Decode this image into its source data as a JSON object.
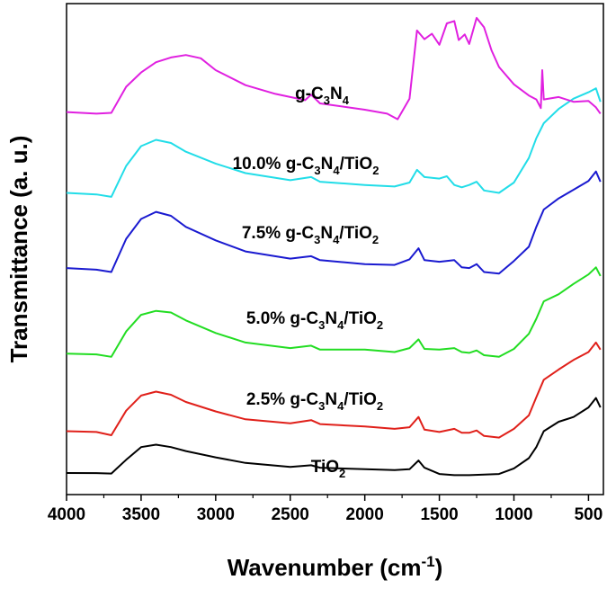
{
  "chart_data": {
    "type": "line",
    "xlabel": "Wavenumber (cm",
    "xlabel_sup": "-1",
    "xlabel_end": ")",
    "ylabel": "Transmittance (a. u.)",
    "xlim": [
      4000,
      400
    ],
    "x_reversed": true,
    "y_ticks_shown": false,
    "x_ticks": [
      4000,
      3500,
      3000,
      2500,
      2000,
      1500,
      1000,
      500
    ],
    "x_tick_labels": [
      "4000",
      "3500",
      "3000",
      "2500",
      "2000",
      "1500",
      "1000",
      "500"
    ],
    "y_unit_note": "arbitrary units; series vertically offset",
    "series": [
      {
        "name": "TiO2",
        "label_parts": [
          {
            "t": "TiO"
          },
          {
            "t": "2",
            "sub": true
          }
        ],
        "color": "#000000",
        "points": [
          [
            4000,
            0.72
          ],
          [
            3800,
            0.71
          ],
          [
            3700,
            0.66
          ],
          [
            3600,
            2.4
          ],
          [
            3500,
            4.0
          ],
          [
            3400,
            4.3
          ],
          [
            3300,
            4.0
          ],
          [
            3200,
            3.5
          ],
          [
            3000,
            2.7
          ],
          [
            2800,
            2.0
          ],
          [
            2500,
            1.5
          ],
          [
            2360,
            1.7
          ],
          [
            2300,
            1.4
          ],
          [
            2000,
            1.2
          ],
          [
            1800,
            1.1
          ],
          [
            1700,
            1.2
          ],
          [
            1640,
            2.3
          ],
          [
            1600,
            1.4
          ],
          [
            1500,
            0.6
          ],
          [
            1400,
            0.45
          ],
          [
            1300,
            0.45
          ],
          [
            1100,
            0.6
          ],
          [
            1000,
            1.3
          ],
          [
            900,
            2.6
          ],
          [
            850,
            4.0
          ],
          [
            800,
            6.0
          ],
          [
            700,
            7.2
          ],
          [
            600,
            7.8
          ],
          [
            500,
            9.0
          ],
          [
            450,
            10.2
          ],
          [
            420,
            9.0
          ]
        ]
      },
      {
        "name": "2.5% g-C3N4/TiO2",
        "label_parts": [
          {
            "t": "2.5% g-C"
          },
          {
            "t": "3",
            "sub": true
          },
          {
            "t": "N"
          },
          {
            "t": "4",
            "sub": true
          },
          {
            "t": "/TiO"
          },
          {
            "t": "2",
            "sub": true
          }
        ],
        "color": "#e0201a",
        "points": [
          [
            4000,
            6.0
          ],
          [
            3800,
            5.9
          ],
          [
            3700,
            5.5
          ],
          [
            3600,
            8.6
          ],
          [
            3500,
            10.5
          ],
          [
            3400,
            11.0
          ],
          [
            3300,
            10.6
          ],
          [
            3200,
            9.7
          ],
          [
            3000,
            8.5
          ],
          [
            2800,
            7.5
          ],
          [
            2500,
            7.0
          ],
          [
            2360,
            7.4
          ],
          [
            2300,
            6.9
          ],
          [
            2000,
            6.6
          ],
          [
            1800,
            6.3
          ],
          [
            1700,
            6.5
          ],
          [
            1640,
            7.8
          ],
          [
            1600,
            6.2
          ],
          [
            1500,
            5.9
          ],
          [
            1400,
            6.3
          ],
          [
            1350,
            5.8
          ],
          [
            1300,
            5.8
          ],
          [
            1250,
            6.1
          ],
          [
            1200,
            5.4
          ],
          [
            1100,
            5.2
          ],
          [
            1000,
            6.3
          ],
          [
            900,
            8.0
          ],
          [
            850,
            10.3
          ],
          [
            800,
            12.5
          ],
          [
            700,
            13.8
          ],
          [
            600,
            15.0
          ],
          [
            500,
            16.0
          ],
          [
            450,
            17.2
          ],
          [
            420,
            16.3
          ]
        ]
      },
      {
        "name": "5.0% g-C3N4/TiO2",
        "label_parts": [
          {
            "t": "5.0% g-C"
          },
          {
            "t": "3",
            "sub": true
          },
          {
            "t": "N"
          },
          {
            "t": "4",
            "sub": true
          },
          {
            "t": "/TiO"
          },
          {
            "t": "2",
            "sub": true
          }
        ],
        "color": "#22dd22",
        "points": [
          [
            4000,
            15.8
          ],
          [
            3800,
            15.7
          ],
          [
            3700,
            15.4
          ],
          [
            3600,
            18.6
          ],
          [
            3500,
            20.7
          ],
          [
            3400,
            21.2
          ],
          [
            3300,
            21.0
          ],
          [
            3200,
            20.0
          ],
          [
            3000,
            18.4
          ],
          [
            2800,
            17.2
          ],
          [
            2500,
            16.5
          ],
          [
            2360,
            16.8
          ],
          [
            2300,
            16.3
          ],
          [
            2000,
            16.3
          ],
          [
            1800,
            16.0
          ],
          [
            1700,
            16.5
          ],
          [
            1640,
            17.6
          ],
          [
            1600,
            16.4
          ],
          [
            1500,
            16.3
          ],
          [
            1400,
            16.5
          ],
          [
            1350,
            16.0
          ],
          [
            1300,
            15.9
          ],
          [
            1250,
            16.2
          ],
          [
            1200,
            15.6
          ],
          [
            1100,
            15.4
          ],
          [
            1000,
            16.4
          ],
          [
            900,
            18.3
          ],
          [
            850,
            20.2
          ],
          [
            800,
            22.4
          ],
          [
            700,
            23.3
          ],
          [
            600,
            24.6
          ],
          [
            500,
            25.8
          ],
          [
            450,
            26.7
          ],
          [
            420,
            25.6
          ]
        ]
      },
      {
        "name": "7.5% g-C3N4/TiO2",
        "label_parts": [
          {
            "t": "7.5% g-C"
          },
          {
            "t": "3",
            "sub": true
          },
          {
            "t": "N"
          },
          {
            "t": "4",
            "sub": true
          },
          {
            "t": "/TiO"
          },
          {
            "t": "2",
            "sub": true
          }
        ],
        "color": "#1a1ad0",
        "points": [
          [
            4000,
            26.6
          ],
          [
            3800,
            26.4
          ],
          [
            3700,
            26.1
          ],
          [
            3600,
            30.3
          ],
          [
            3500,
            32.8
          ],
          [
            3400,
            33.7
          ],
          [
            3300,
            33.2
          ],
          [
            3200,
            31.8
          ],
          [
            3000,
            30.1
          ],
          [
            2800,
            28.7
          ],
          [
            2500,
            27.8
          ],
          [
            2360,
            28.1
          ],
          [
            2300,
            27.6
          ],
          [
            2000,
            27.1
          ],
          [
            1800,
            27.0
          ],
          [
            1700,
            27.7
          ],
          [
            1640,
            29.1
          ],
          [
            1600,
            27.6
          ],
          [
            1500,
            27.4
          ],
          [
            1400,
            27.6
          ],
          [
            1350,
            26.7
          ],
          [
            1300,
            26.6
          ],
          [
            1250,
            27.1
          ],
          [
            1200,
            26.1
          ],
          [
            1100,
            25.9
          ],
          [
            1000,
            27.5
          ],
          [
            900,
            29.3
          ],
          [
            850,
            31.8
          ],
          [
            800,
            34.0
          ],
          [
            700,
            35.4
          ],
          [
            600,
            36.5
          ],
          [
            500,
            37.6
          ],
          [
            450,
            38.8
          ],
          [
            420,
            37.5
          ]
        ]
      },
      {
        "name": "10.0% g-C3N4/TiO2",
        "label_parts": [
          {
            "t": "10.0% g-C"
          },
          {
            "t": "3",
            "sub": true
          },
          {
            "t": "N"
          },
          {
            "t": "4",
            "sub": true
          },
          {
            "t": "/TiO"
          },
          {
            "t": "2",
            "sub": true
          }
        ],
        "color": "#22dde8",
        "points": [
          [
            4000,
            36.1
          ],
          [
            3800,
            35.9
          ],
          [
            3700,
            35.6
          ],
          [
            3600,
            39.5
          ],
          [
            3500,
            42.0
          ],
          [
            3400,
            42.8
          ],
          [
            3300,
            42.4
          ],
          [
            3200,
            41.3
          ],
          [
            3000,
            39.8
          ],
          [
            2800,
            38.6
          ],
          [
            2500,
            37.7
          ],
          [
            2360,
            38.1
          ],
          [
            2300,
            37.5
          ],
          [
            2000,
            37.1
          ],
          [
            1800,
            36.9
          ],
          [
            1700,
            37.4
          ],
          [
            1650,
            39.0
          ],
          [
            1600,
            38.1
          ],
          [
            1500,
            37.9
          ],
          [
            1450,
            38.2
          ],
          [
            1400,
            37.1
          ],
          [
            1350,
            36.8
          ],
          [
            1300,
            37.1
          ],
          [
            1250,
            37.5
          ],
          [
            1200,
            36.4
          ],
          [
            1100,
            36.1
          ],
          [
            1000,
            37.4
          ],
          [
            900,
            40.5
          ],
          [
            850,
            43.0
          ],
          [
            800,
            44.9
          ],
          [
            700,
            46.7
          ],
          [
            600,
            48.0
          ],
          [
            500,
            48.8
          ],
          [
            450,
            49.3
          ],
          [
            420,
            47.6
          ]
        ]
      },
      {
        "name": "g-C3N4",
        "label_parts": [
          {
            "t": "g-C"
          },
          {
            "t": "3",
            "sub": true
          },
          {
            "t": "N"
          },
          {
            "t": "4",
            "sub": true
          }
        ],
        "color": "#e020e0",
        "points": [
          [
            4000,
            46.3
          ],
          [
            3800,
            46.1
          ],
          [
            3700,
            46.2
          ],
          [
            3600,
            49.5
          ],
          [
            3500,
            51.3
          ],
          [
            3400,
            52.6
          ],
          [
            3300,
            53.2
          ],
          [
            3200,
            53.5
          ],
          [
            3100,
            53.1
          ],
          [
            3000,
            51.6
          ],
          [
            2800,
            49.7
          ],
          [
            2600,
            48.6
          ],
          [
            2400,
            47.8
          ],
          [
            2360,
            48.5
          ],
          [
            2300,
            47.4
          ],
          [
            2000,
            46.6
          ],
          [
            1850,
            46.1
          ],
          [
            1780,
            45.4
          ],
          [
            1700,
            48.0
          ],
          [
            1650,
            56.6
          ],
          [
            1600,
            55.5
          ],
          [
            1550,
            56.2
          ],
          [
            1500,
            54.8
          ],
          [
            1450,
            57.5
          ],
          [
            1400,
            57.8
          ],
          [
            1370,
            55.4
          ],
          [
            1330,
            56.1
          ],
          [
            1300,
            54.9
          ],
          [
            1250,
            58.2
          ],
          [
            1200,
            57.0
          ],
          [
            1150,
            54.1
          ],
          [
            1100,
            52.0
          ],
          [
            1000,
            49.8
          ],
          [
            900,
            48.4
          ],
          [
            850,
            47.9
          ],
          [
            820,
            46.8
          ],
          [
            810,
            51.6
          ],
          [
            800,
            47.9
          ],
          [
            700,
            48.2
          ],
          [
            600,
            47.6
          ],
          [
            500,
            47.7
          ],
          [
            450,
            46.9
          ],
          [
            420,
            46.1
          ]
        ]
      }
    ]
  }
}
